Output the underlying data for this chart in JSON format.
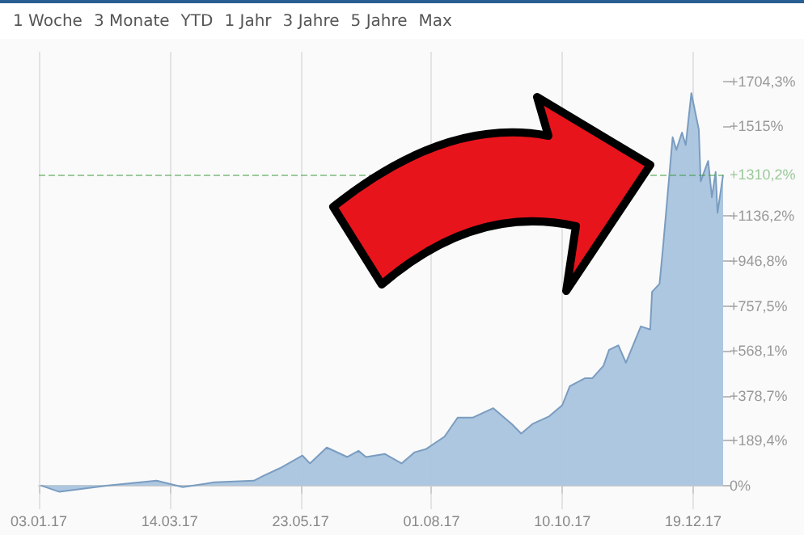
{
  "chart_data": {
    "type": "area",
    "annotations": [
      "1 Woche",
      "3 Monate",
      "YTD",
      "1 Jahr",
      "3 Jahre",
      "5 Jahre",
      "Max"
    ],
    "x": [
      "2017-01-04",
      "2017-01-14",
      "2017-02-09",
      "2017-03-07",
      "2017-03-21",
      "2017-04-07",
      "2017-04-28",
      "2017-05-03",
      "2017-05-12",
      "2017-05-24",
      "2017-05-28",
      "2017-06-06",
      "2017-06-17",
      "2017-06-23",
      "2017-06-27",
      "2017-07-07",
      "2017-07-16",
      "2017-07-23",
      "2017-07-29",
      "2017-08-08",
      "2017-08-15",
      "2017-08-23",
      "2017-09-03",
      "2017-09-13",
      "2017-09-18",
      "2017-09-24",
      "2017-10-03",
      "2017-10-10",
      "2017-10-14",
      "2017-10-22",
      "2017-10-26",
      "2017-11-01",
      "2017-11-04",
      "2017-11-09",
      "2017-11-13",
      "2017-11-21",
      "2017-11-26",
      "2017-11-27",
      "2017-12-01",
      "2017-12-03",
      "2017-12-08",
      "2017-12-10",
      "2017-12-13",
      "2017-12-15",
      "2017-12-18",
      "2017-12-22",
      "2017-12-23",
      "2017-12-27",
      "2017-12-29",
      "2017-12-31",
      "2018-01-01",
      "2018-01-04"
    ],
    "series": [
      {
        "color": "#a9c4de",
        "values": [
          0,
          -27,
          0,
          20,
          -7,
          13,
          20,
          40,
          73,
          126,
          93,
          160,
          120,
          146,
          120,
          133,
          93,
          140,
          153,
          206,
          286,
          286,
          326,
          259,
          219,
          259,
          292,
          339,
          419,
          452,
          452,
          505,
          572,
          591,
          518,
          671,
          658,
          817,
          851,
          1017,
          1469,
          1416,
          1489,
          1436,
          1655,
          1502,
          1283,
          1369,
          1216,
          1323,
          1150,
          1310.2
        ]
      }
    ],
    "xlim": [
      "2017-01-03",
      "2018-01-04"
    ],
    "xticks": [
      {
        "value": "2017-01-03",
        "label": "03.01.17"
      },
      {
        "value": "2017-03-14",
        "label": "14.03.17"
      },
      {
        "value": "2017-05-23",
        "label": "23.05.17"
      },
      {
        "value": "2017-08-01",
        "label": "01.08.17"
      },
      {
        "value": "2017-10-10",
        "label": "10.10.17"
      },
      {
        "value": "2017-12-19",
        "label": "19.12.17"
      }
    ],
    "ylim": [
      -100,
      1830
    ],
    "yticks": [
      {
        "value": 0,
        "label": "0%"
      },
      {
        "value": 189.4,
        "label": "+189,4%"
      },
      {
        "value": 378.7,
        "label": "+378,7%"
      },
      {
        "value": 568.1,
        "label": "+568,1%"
      },
      {
        "value": 757.5,
        "label": "+757,5%"
      },
      {
        "value": 946.8,
        "label": "+946,8%"
      },
      {
        "value": 1136.2,
        "label": "+1136,2%"
      },
      {
        "value": 1515,
        "label": "+1515%"
      },
      {
        "value": 1704.3,
        "label": "+1704,3%"
      }
    ],
    "ref_lines": [
      {
        "axis": "y",
        "value": 1310.2,
        "label": "+1310,2%",
        "color": "#3c9a3c"
      }
    ],
    "grid": "x",
    "marker": "none"
  }
}
